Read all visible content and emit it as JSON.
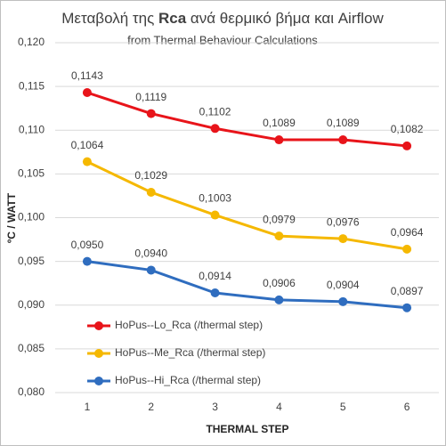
{
  "chart_data": {
    "type": "line",
    "title": [
      "Μεταβολή της ",
      "Rca",
      " ανά θερμικό βήμα και  Airflow"
    ],
    "subtitle": "from Thermal Behaviour Calculations",
    "x_label": "THERMAL  STEP",
    "y_label": "ºC / WATT",
    "categories": [
      "1",
      "2",
      "3",
      "4",
      "5",
      "6"
    ],
    "series": [
      {
        "name": "HoPus--Lo_Rca (/thermal step)",
        "color": "#e8141a",
        "values": [
          0.1143,
          0.1119,
          0.1102,
          0.1089,
          0.1089,
          0.1082
        ],
        "value_labels": [
          "0,1143",
          "0,1119",
          "0,1102",
          "0,1089",
          "0,1089",
          "0,1082"
        ]
      },
      {
        "name": "HoPus--Me_Rca (/thermal step)",
        "color": "#f5b800",
        "values": [
          0.1064,
          0.1029,
          0.1003,
          0.0979,
          0.0976,
          0.0964
        ],
        "value_labels": [
          "0,1064",
          "0,1029",
          "0,1003",
          "0,0979",
          "0,0976",
          "0,0964"
        ]
      },
      {
        "name": "HoPus--Hi_Rca (/thermal step)",
        "color": "#2f6dbf",
        "values": [
          0.095,
          0.094,
          0.0914,
          0.0906,
          0.0904,
          0.0897
        ],
        "value_labels": [
          "0,0950",
          "0,0940",
          "0,0914",
          "0,0906",
          "0,0904",
          "0,0897"
        ]
      }
    ],
    "ylim": [
      0.08,
      0.12
    ],
    "yticks": [
      {
        "value": 0.08,
        "label": "0,080"
      },
      {
        "value": 0.085,
        "label": "0,085"
      },
      {
        "value": 0.09,
        "label": "0,090"
      },
      {
        "value": 0.095,
        "label": "0,095"
      },
      {
        "value": 0.1,
        "label": "0,100"
      },
      {
        "value": 0.105,
        "label": "0,105"
      },
      {
        "value": 0.11,
        "label": "0,110"
      },
      {
        "value": 0.115,
        "label": "0,115"
      },
      {
        "value": 0.12,
        "label": "0,120"
      }
    ],
    "grid": true,
    "legend": "lower left"
  }
}
